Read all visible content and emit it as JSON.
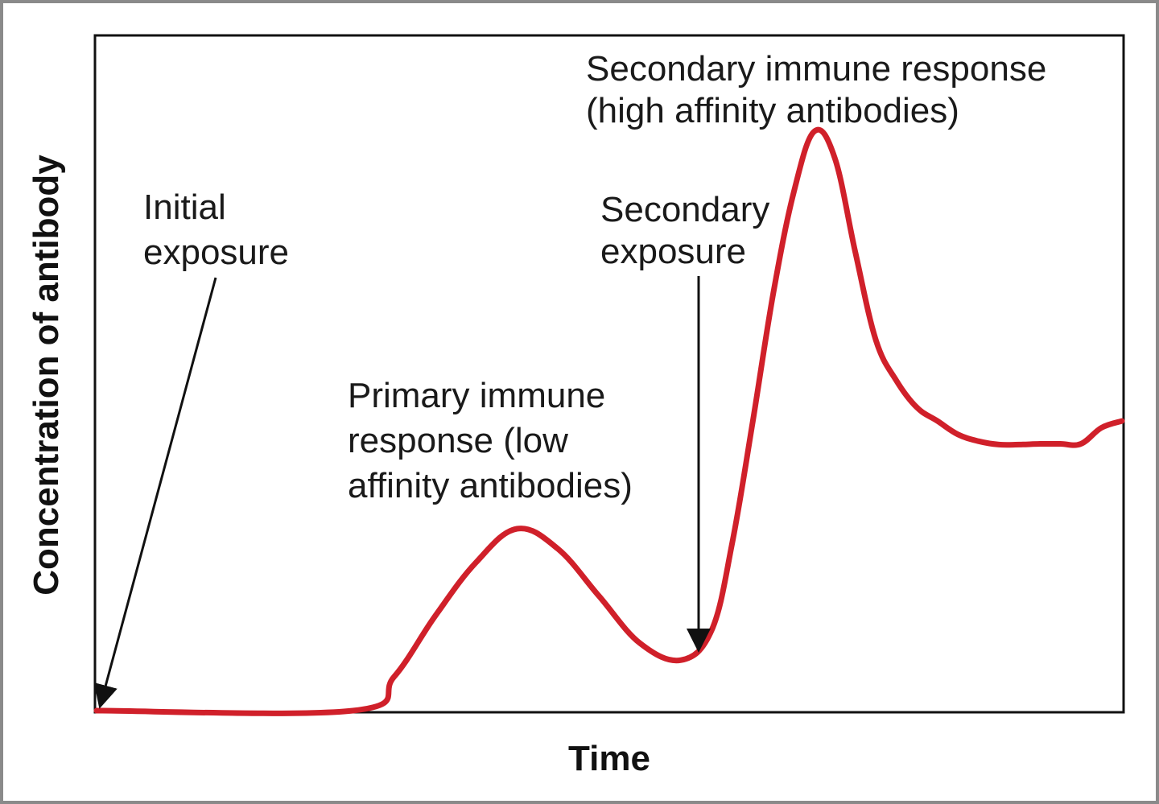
{
  "chart_data": {
    "type": "line",
    "xlabel": "Time",
    "ylabel": "Concentration of antibody",
    "title": "",
    "xlim": [
      0,
      100
    ],
    "ylim": [
      0,
      100
    ],
    "grid": false,
    "series": [
      {
        "color": "#d0202a",
        "x": [
          0,
          25,
          29,
          33,
          37,
          41,
          45,
          49,
          53,
          57,
          60,
          62,
          64,
          66,
          68,
          70,
          72,
          74,
          76,
          78,
          80,
          82,
          84,
          86,
          88,
          90,
          92,
          94,
          96,
          98,
          100
        ],
        "y": [
          0,
          0,
          5,
          14,
          22,
          27,
          24,
          17,
          10,
          7.5,
          12,
          25,
          43,
          62,
          77,
          86,
          82,
          68,
          55,
          49,
          45,
          43,
          41,
          40,
          39.5,
          39.5,
          39.6,
          39.6,
          39.6,
          42,
          43
        ]
      }
    ],
    "annotations": [
      {
        "id": "initial",
        "lines": [
          "Initial",
          "exposure"
        ],
        "x": 0,
        "y": 0
      },
      {
        "id": "secondary-exposure",
        "lines": [
          "Secondary",
          "exposure"
        ],
        "x": 59,
        "y": 7.5
      },
      {
        "id": "primary-response",
        "lines": [
          "Primary immune",
          "response (low",
          "affinity antibodies)"
        ]
      },
      {
        "id": "secondary-response",
        "lines": [
          "Secondary immune response",
          "(high affinity antibodies)"
        ]
      }
    ]
  }
}
